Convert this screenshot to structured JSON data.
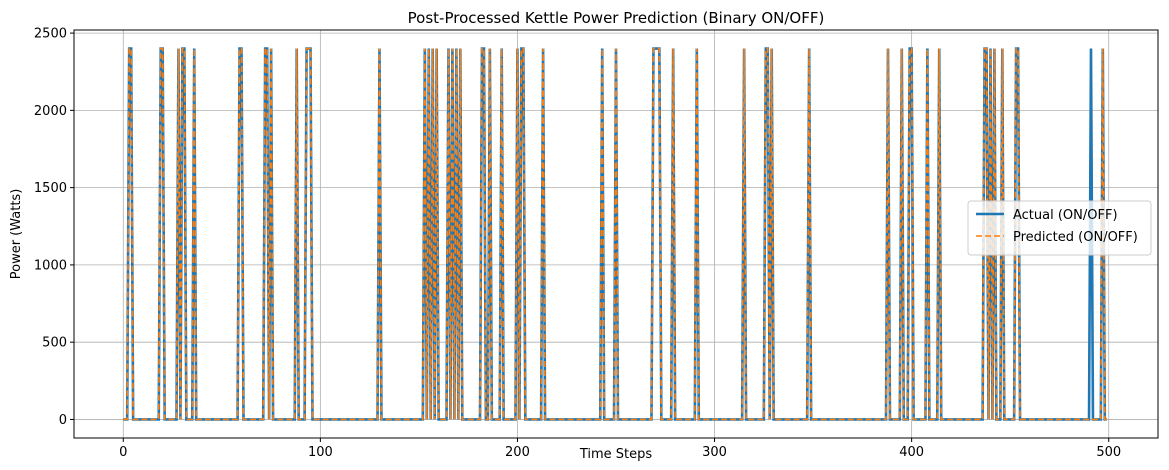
{
  "chart_data": {
    "type": "line",
    "title": "Post-Processed Kettle Power Prediction (Binary ON/OFF)",
    "xlabel": "Time Steps",
    "ylabel": "Power (Watts)",
    "xlim": [
      -25,
      525
    ],
    "ylim": [
      -120,
      2520
    ],
    "x_ticks": [
      0,
      100,
      200,
      300,
      400,
      500
    ],
    "y_ticks": [
      0,
      500,
      1000,
      1500,
      2000,
      2500
    ],
    "grid": true,
    "legend_position": "center-right",
    "on_value": 2400,
    "off_value": 0,
    "x_range": [
      0,
      499
    ],
    "series": [
      {
        "name": "Actual (ON/OFF)",
        "color": "#1f77b4",
        "style": "solid",
        "on_steps": [
          3,
          4,
          19,
          20,
          28,
          30,
          31,
          36,
          59,
          60,
          72,
          73,
          75,
          88,
          93,
          94,
          95,
          130,
          153,
          155,
          157,
          159,
          165,
          167,
          169,
          171,
          182,
          183,
          186,
          192,
          200,
          202,
          203,
          213,
          243,
          250,
          269,
          270,
          271,
          272,
          279,
          291,
          315,
          326,
          327,
          329,
          348,
          388,
          395,
          399,
          400,
          408,
          414,
          437,
          438,
          440,
          442,
          446,
          453,
          454,
          491,
          497
        ]
      },
      {
        "name": "Predicted (ON/OFF)",
        "color": "#ff7f0e",
        "style": "dashed",
        "on_steps": [
          3,
          4,
          19,
          20,
          28,
          30,
          31,
          36,
          59,
          60,
          72,
          73,
          75,
          88,
          93,
          94,
          95,
          130,
          153,
          155,
          157,
          159,
          165,
          167,
          169,
          171,
          182,
          183,
          186,
          192,
          200,
          202,
          203,
          213,
          243,
          250,
          269,
          270,
          271,
          272,
          279,
          291,
          315,
          326,
          327,
          329,
          348,
          388,
          395,
          399,
          400,
          408,
          414,
          437,
          438,
          440,
          442,
          446,
          453,
          454,
          497
        ]
      }
    ]
  }
}
